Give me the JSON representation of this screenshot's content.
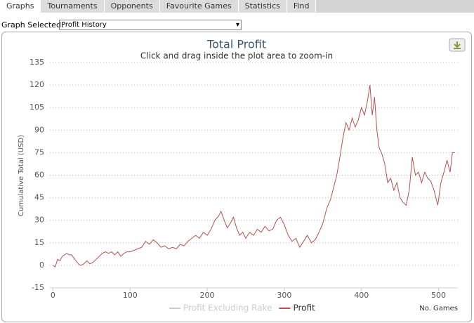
{
  "tabs": [
    "Graphs",
    "Tournaments",
    "Opponents",
    "Favourite Games",
    "Statistics",
    "Find"
  ],
  "active_tab": 0,
  "graph_selector": {
    "label": "Graph Selected:",
    "value": "Profit History"
  },
  "chart_data": {
    "type": "line",
    "title": "Total Profit",
    "subtitle": "Click and drag inside the plot area to zoom-in",
    "y_label": "Cumulative Total (USD)",
    "x_label": "No. Games",
    "xlim": [
      -4,
      525
    ],
    "xticks": [
      0,
      100,
      200,
      300,
      400,
      500
    ],
    "ylim": [
      -15,
      135
    ],
    "yticks": [
      -15,
      0,
      15,
      30,
      45,
      60,
      75,
      90,
      105,
      120,
      135
    ],
    "grid": true,
    "series": [
      {
        "name": "Profit Excluding Rake",
        "color": "#cccccc",
        "visible": false
      },
      {
        "name": "Profit",
        "color": "#b5524f",
        "visible": true,
        "x": [
          0,
          3,
          6,
          9,
          12,
          15,
          18,
          21,
          24,
          27,
          30,
          33,
          36,
          40,
          44,
          48,
          52,
          56,
          60,
          64,
          68,
          72,
          76,
          80,
          84,
          88,
          92,
          96,
          100,
          105,
          110,
          115,
          120,
          125,
          130,
          135,
          140,
          145,
          150,
          155,
          160,
          165,
          170,
          175,
          180,
          185,
          190,
          195,
          200,
          205,
          210,
          215,
          218,
          222,
          226,
          230,
          234,
          238,
          242,
          246,
          250,
          255,
          260,
          265,
          270,
          275,
          280,
          285,
          290,
          295,
          300,
          305,
          310,
          315,
          320,
          325,
          330,
          335,
          340,
          345,
          350,
          355,
          360,
          364,
          368,
          372,
          376,
          380,
          384,
          388,
          392,
          396,
          400,
          404,
          408,
          411,
          414,
          417,
          420,
          423,
          426,
          430,
          434,
          438,
          442,
          446,
          450,
          454,
          458,
          462,
          466,
          470,
          474,
          478,
          482,
          486,
          490,
          494,
          499,
          503,
          507,
          511,
          515,
          518,
          521
        ],
        "values": [
          0,
          -1,
          4,
          3,
          6,
          7,
          8,
          7,
          7,
          5,
          3,
          1,
          0,
          1,
          3,
          1,
          2,
          4,
          6,
          8,
          9,
          8,
          9,
          7,
          9,
          6,
          8,
          9,
          9,
          10,
          11,
          12,
          16,
          14,
          17,
          15,
          12,
          13,
          11,
          12,
          11,
          14,
          13,
          16,
          18,
          20,
          18,
          22,
          20,
          24,
          30,
          33,
          36,
          30,
          25,
          28,
          32,
          25,
          20,
          22,
          18,
          22,
          20,
          24,
          22,
          26,
          23,
          24,
          30,
          32,
          27,
          20,
          16,
          18,
          12,
          16,
          20,
          15,
          17,
          22,
          28,
          38,
          44,
          52,
          60,
          72,
          85,
          95,
          90,
          98,
          92,
          97,
          105,
          100,
          110,
          120,
          100,
          112,
          90,
          78,
          75,
          68,
          55,
          58,
          50,
          55,
          45,
          42,
          40,
          50,
          72,
          60,
          62,
          55,
          62,
          58,
          56,
          50,
          40,
          55,
          62,
          70,
          62,
          75,
          75
        ]
      }
    ]
  }
}
